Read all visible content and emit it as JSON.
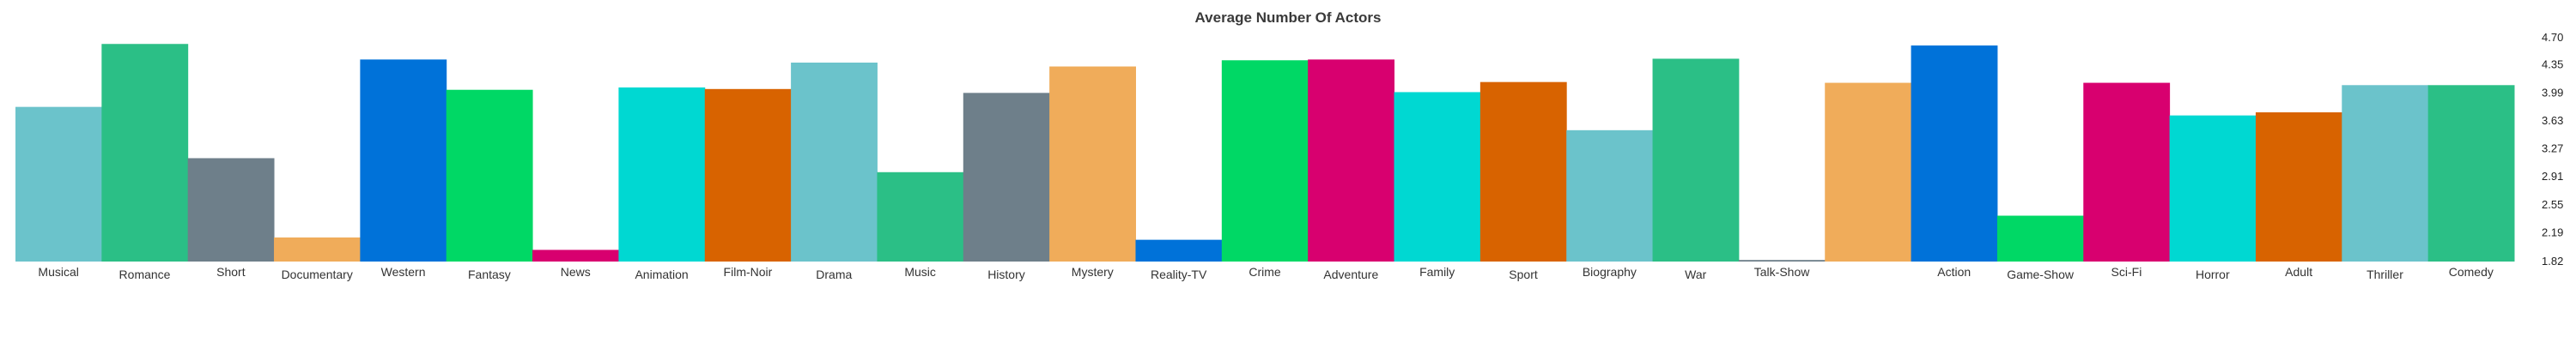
{
  "chart_data": {
    "type": "bar",
    "title": "Average Number Of Actors",
    "xlabel": "",
    "ylabel": "",
    "ylim": [
      1.82,
      4.7
    ],
    "yticks": [
      "1.82",
      "2.19",
      "2.55",
      "2.91",
      "3.27",
      "3.63",
      "3.99",
      "4.35",
      "4.70"
    ],
    "grid": false,
    "legend": "none",
    "categories": [
      "Musical",
      "Romance",
      "Short",
      "Documentary",
      "Western",
      "Fantasy",
      "News",
      "Animation",
      "Film-Noir",
      "Drama",
      "Music",
      "History",
      "Mystery",
      "Reality-TV",
      "Crime",
      "Adventure",
      "Family",
      "Sport",
      "Biography",
      "War",
      "Talk-Show",
      "",
      "Action",
      "Game-Show",
      "Sci-Fi",
      "Horror",
      "Adult",
      "Thriller",
      "Comedy"
    ],
    "values": [
      3.81,
      4.62,
      3.15,
      2.13,
      4.42,
      4.03,
      1.97,
      4.06,
      4.04,
      4.38,
      2.97,
      3.99,
      4.33,
      2.1,
      4.41,
      4.42,
      4.0,
      4.13,
      3.51,
      4.43,
      1.84,
      4.12,
      4.6,
      2.41,
      4.12,
      3.7,
      3.74,
      4.09,
      4.09
    ],
    "colors": [
      "#6bc3cb",
      "#2bbf86",
      "#6e7f8a",
      "#f0ac5a",
      "#0072d9",
      "#00d865",
      "#d8006f",
      "#00d8d2",
      "#d86300",
      "#6bc3cb",
      "#2bbf86",
      "#6e7f8a",
      "#f0ac5a",
      "#0072d9",
      "#00d865",
      "#d8006f",
      "#00d8d2",
      "#d86300",
      "#6bc3cb",
      "#2bbf86",
      "#6e7f8a",
      "#f0ac5a",
      "#0072d9",
      "#00d865",
      "#d8006f",
      "#00d8d2",
      "#d86300",
      "#6bc3cb",
      "#2bbf86"
    ]
  }
}
